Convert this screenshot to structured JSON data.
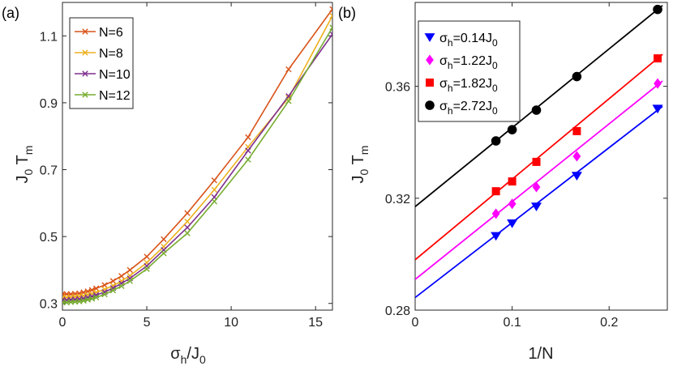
{
  "chart_data": [
    {
      "type": "line",
      "panel_label": "(a)",
      "xlabel": "σ_h/J_0",
      "ylabel": "J_0 T_m",
      "xlim": [
        0,
        16
      ],
      "ylim": [
        0.28,
        1.2
      ],
      "xticks": [
        0,
        5,
        10,
        15
      ],
      "yticks": [
        0.3,
        0.5,
        0.7,
        0.9,
        1.1
      ],
      "xtick_labels": [
        "0",
        "5",
        "10",
        "15"
      ],
      "ytick_labels": [
        "0.3",
        "0.5",
        "0.7",
        "0.9",
        "1.1"
      ],
      "legend_position": "top-left",
      "series": [
        {
          "name": "N=6",
          "color": "#d95319",
          "marker": "x",
          "x": [
            0,
            0.25,
            0.5,
            0.75,
            1,
            1.25,
            1.5,
            1.75,
            2,
            2.5,
            3,
            3.5,
            4,
            5,
            6,
            7.4,
            9,
            11,
            13.4,
            16
          ],
          "y": [
            0.328,
            0.328,
            0.328,
            0.329,
            0.33,
            0.333,
            0.336,
            0.34,
            0.345,
            0.355,
            0.367,
            0.382,
            0.4,
            0.44,
            0.492,
            0.57,
            0.668,
            0.797,
            1.0,
            1.18
          ]
        },
        {
          "name": "N=8",
          "color": "#edb120",
          "marker": "x",
          "x": [
            0,
            0.25,
            0.5,
            0.75,
            1,
            1.25,
            1.5,
            1.75,
            2,
            2.5,
            3,
            3.5,
            4,
            5,
            6,
            7.4,
            9,
            11,
            13.4,
            16
          ],
          "y": [
            0.318,
            0.318,
            0.319,
            0.32,
            0.321,
            0.323,
            0.326,
            0.329,
            0.333,
            0.342,
            0.353,
            0.367,
            0.383,
            0.422,
            0.47,
            0.545,
            0.64,
            0.768,
            0.915,
            1.16
          ]
        },
        {
          "name": "N=10",
          "color": "#7e2f8e",
          "marker": "x",
          "x": [
            0,
            0.25,
            0.5,
            0.75,
            1,
            1.25,
            1.5,
            1.75,
            2,
            2.5,
            3,
            3.5,
            4,
            5,
            6,
            7.4,
            9,
            11,
            13.4,
            16
          ],
          "y": [
            0.31,
            0.31,
            0.311,
            0.312,
            0.313,
            0.315,
            0.318,
            0.321,
            0.325,
            0.334,
            0.346,
            0.36,
            0.375,
            0.412,
            0.46,
            0.527,
            0.618,
            0.757,
            0.92,
            1.105
          ]
        },
        {
          "name": "N=12",
          "color": "#77ac30",
          "marker": "x",
          "x": [
            0,
            0.25,
            0.5,
            0.75,
            1,
            1.25,
            1.5,
            1.75,
            2,
            2.5,
            3,
            3.5,
            4,
            5,
            6,
            7.4,
            9,
            11,
            13.4,
            16
          ],
          "y": [
            0.303,
            0.303,
            0.304,
            0.305,
            0.306,
            0.308,
            0.311,
            0.314,
            0.318,
            0.327,
            0.339,
            0.352,
            0.367,
            0.403,
            0.45,
            0.51,
            0.605,
            0.73,
            0.905,
            1.125
          ]
        }
      ]
    },
    {
      "type": "scatter",
      "panel_label": "(b)",
      "xlabel": "1/N",
      "ylabel": "J_0 T_m",
      "xlim": [
        0,
        0.26
      ],
      "ylim": [
        0.28,
        0.39
      ],
      "xticks": [
        0,
        0.1,
        0.2
      ],
      "yticks": [
        0.28,
        0.32,
        0.36
      ],
      "xtick_labels": [
        "0",
        "0.1",
        "0.2"
      ],
      "ytick_labels": [
        "0.28",
        "0.32",
        "0.36"
      ],
      "legend_position": "top-left",
      "series": [
        {
          "name": "σ_h=0.14J_0",
          "color": "#0000ff",
          "marker": "triangle-down",
          "x": [
            0.0833,
            0.1,
            0.125,
            0.1667,
            0.25
          ],
          "y": [
            0.3065,
            0.311,
            0.317,
            0.328,
            0.352
          ],
          "fit": {
            "intercept": 0.2845,
            "slope": 0.268
          }
        },
        {
          "name": "σ_h=1.22J_0",
          "color": "#ff00ff",
          "marker": "diamond",
          "x": [
            0.0833,
            0.1,
            0.125,
            0.1667,
            0.25
          ],
          "y": [
            0.3145,
            0.318,
            0.324,
            0.335,
            0.361
          ],
          "fit": {
            "intercept": 0.291,
            "slope": 0.278
          }
        },
        {
          "name": "σ_h=1.82J_0",
          "color": "#ff0000",
          "marker": "square",
          "x": [
            0.0833,
            0.1,
            0.125,
            0.1667,
            0.25
          ],
          "y": [
            0.3225,
            0.326,
            0.333,
            0.344,
            0.37
          ],
          "fit": {
            "intercept": 0.298,
            "slope": 0.288
          }
        },
        {
          "name": "σ_h=2.72J_0",
          "color": "#000000",
          "marker": "circle",
          "x": [
            0.0833,
            0.1,
            0.125,
            0.1667,
            0.25
          ],
          "y": [
            0.3405,
            0.3445,
            0.3515,
            0.3635,
            0.3875
          ],
          "fit": {
            "intercept": 0.317,
            "slope": 0.282
          }
        }
      ]
    }
  ]
}
